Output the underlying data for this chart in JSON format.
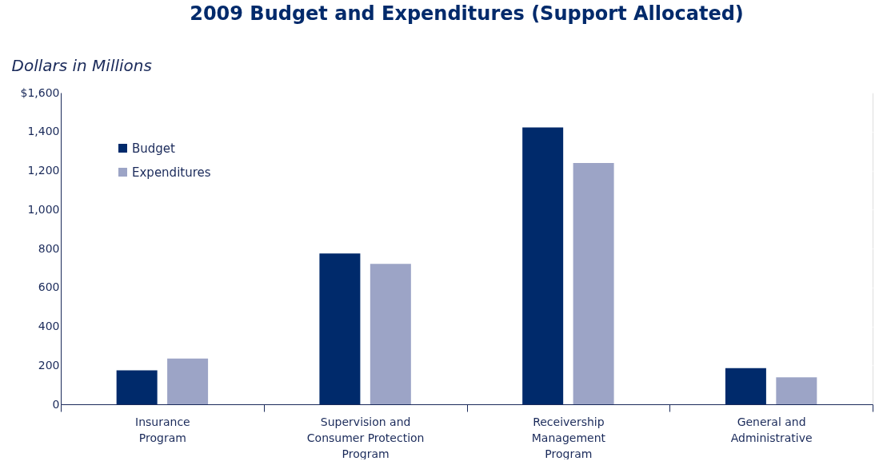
{
  "chart_data": {
    "type": "bar",
    "title": "2009 Budget and Expenditures (Support Allocated)",
    "ylabel": "Dollars in Millions",
    "categories": [
      "Insurance\nProgram",
      "Supervision and\nConsumer Protection\nProgram",
      "Receivership\nManagement\nProgram",
      "General and\nAdministrative"
    ],
    "series": [
      {
        "name": "Budget",
        "color": "#002a6b",
        "values": [
          174,
          774,
          1422,
          186
        ]
      },
      {
        "name": "Expenditures",
        "color": "#9ca4c6",
        "values": [
          235,
          721,
          1239,
          138
        ]
      }
    ],
    "ylim": [
      0,
      1600
    ],
    "yticks": [
      0,
      200,
      400,
      600,
      800,
      {
        "value": 1000,
        "label": "1,000"
      },
      {
        "value": 1200,
        "label": "1,200"
      },
      {
        "value": 1400,
        "label": "1,400"
      },
      {
        "value": 1600,
        "label": "$1,600"
      }
    ],
    "grid": "y",
    "legend": "top left"
  }
}
